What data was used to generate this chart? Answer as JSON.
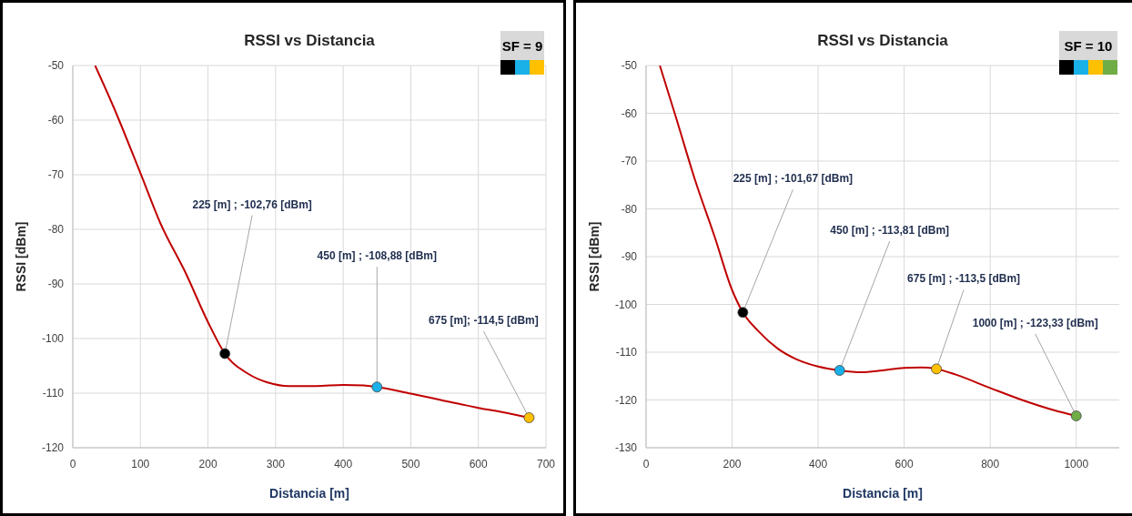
{
  "chart_data": [
    {
      "type": "line",
      "title": "RSSI vs Distancia",
      "xlabel": "Distancia [m]",
      "ylabel": "RSSI [dBm]",
      "xlim": [
        0,
        700
      ],
      "xticks": [
        0,
        100,
        200,
        300,
        400,
        500,
        600,
        700
      ],
      "ylim": [
        -120,
        -50
      ],
      "yticks": [
        -120,
        -110,
        -100,
        -90,
        -80,
        -70,
        -60,
        -50
      ],
      "grid": true,
      "line_style": "solid",
      "series": [
        {
          "color": "#c00000",
          "x": [
            33,
            60,
            100,
            130,
            167,
            200,
            225,
            260,
            287,
            320,
            360,
            400,
            430,
            450,
            500,
            550,
            600,
            640,
            675
          ],
          "values": [
            -50,
            -57.5,
            -69.7,
            -79,
            -88,
            -97,
            -102.76,
            -106.5,
            -108,
            -108.7,
            -108.7,
            -108.5,
            -108.6,
            -108.88,
            -110.1,
            -111.4,
            -112.7,
            -113.6,
            -114.5
          ]
        },
        {
          "type": "scatter",
          "marker": "circle",
          "x": [
            225,
            450,
            675
          ],
          "values": [
            -102.76,
            -108.88,
            -114.5
          ],
          "colors": [
            "#000000",
            "#1ab0e8",
            "#ffc000"
          ]
        }
      ],
      "annotations": [
        "SF = 9",
        {
          "text": "225 [m] ; -102,76 [dBm]",
          "x": 225,
          "y": -102.76
        },
        {
          "text": "450 [m] ; -108,88 [dBm]",
          "x": 450,
          "y": -108.88
        },
        {
          "text": "675 [m]; -114,5 [dBm]",
          "x": 675,
          "y": -114.5
        }
      ]
    },
    {
      "type": "line",
      "title": "RSSI vs Distancia",
      "xlabel": "Distancia [m]",
      "ylabel": "RSSI [dBm]",
      "xlim": [
        0,
        1100
      ],
      "xticks": [
        0,
        200,
        400,
        600,
        800,
        1000
      ],
      "ylim": [
        -130,
        -50
      ],
      "yticks": [
        -130,
        -120,
        -110,
        -100,
        -90,
        -80,
        -70,
        -60,
        -50
      ],
      "grid": true,
      "line_style": "solid",
      "series": [
        {
          "color": "#c00000",
          "x": [
            32,
            70,
            114,
            160,
            200,
            225,
            260,
            307,
            350,
            400,
            450,
            500,
            550,
            600,
            640,
            675,
            720,
            800,
            880,
            950,
            1000
          ],
          "values": [
            -50,
            -61,
            -74,
            -86,
            -97,
            -101.67,
            -105.5,
            -109.3,
            -111.5,
            -113,
            -113.81,
            -114.2,
            -113.8,
            -113.3,
            -113.2,
            -113.5,
            -114.7,
            -117.5,
            -120.2,
            -122.2,
            -123.33
          ]
        },
        {
          "type": "scatter",
          "marker": "circle",
          "x": [
            225,
            450,
            675,
            1000
          ],
          "values": [
            -101.67,
            -113.81,
            -113.5,
            -123.33
          ],
          "colors": [
            "#000000",
            "#1ab0e8",
            "#ffc000",
            "#70ad47"
          ]
        }
      ],
      "annotations": [
        "SF = 10",
        {
          "text": "225 [m] ; -101,67 [dBm]",
          "x": 225,
          "y": -101.67
        },
        {
          "text": "450 [m] ; -113,81 [dBm]",
          "x": 450,
          "y": -113.81
        },
        {
          "text": "675 [m] ; -113,5 [dBm]",
          "x": 675,
          "y": -113.5
        },
        {
          "text": "1000 [m] ; -123,33 [dBm]",
          "x": 1000,
          "y": -123.33
        }
      ]
    }
  ]
}
